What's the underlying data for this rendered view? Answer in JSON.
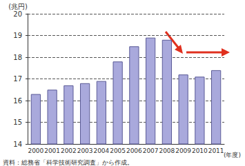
{
  "chart_data": {
    "type": "bar",
    "y_label": "(兆円)",
    "x_label": "(年度)",
    "source": "資料：総務省「科学技術研究調査」から作成。",
    "categories": [
      "2000",
      "2001",
      "2002",
      "2003",
      "2004",
      "2005",
      "2006",
      "2007",
      "2008",
      "2009",
      "2010",
      "2011"
    ],
    "values": [
      16.3,
      16.5,
      16.7,
      16.8,
      16.9,
      17.8,
      18.5,
      18.9,
      18.8,
      17.2,
      17.1,
      17.4
    ],
    "color": "#a9a9dc",
    "ylim": [
      14,
      20
    ],
    "yticks": [
      14,
      15,
      16,
      17,
      18,
      19,
      20
    ],
    "grid": true
  }
}
